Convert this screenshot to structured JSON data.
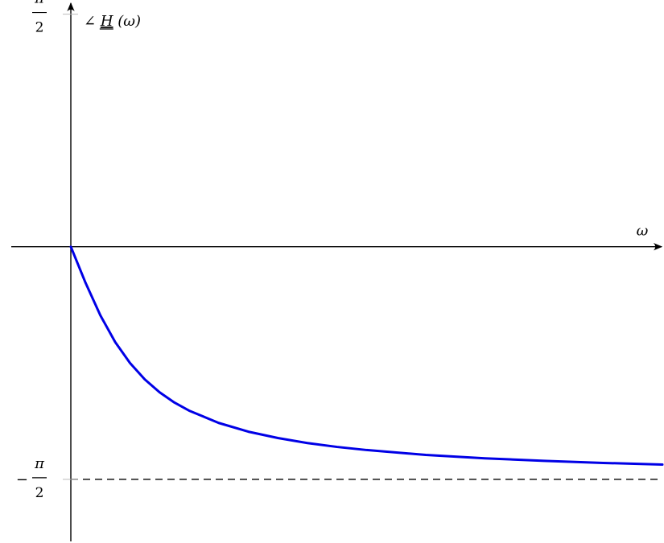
{
  "chart_data": {
    "type": "line",
    "title": "",
    "xlabel": "ω",
    "ylabel": "∠H(ω)",
    "ylabel_parts": {
      "angle": "∠",
      "var": "H",
      "arg": "(ω)"
    },
    "xlim": [
      0,
      10
    ],
    "ylim": [
      -1.99,
      1.65
    ],
    "y_ticks": [
      {
        "value": 1.5708,
        "sign": "",
        "numerator": "π",
        "denominator": "2"
      },
      {
        "value": -1.5708,
        "sign": "−",
        "numerator": "π",
        "denominator": "2"
      }
    ],
    "series": [
      {
        "color": "#0000e6",
        "style": "solid",
        "x": [
          0,
          0.25,
          0.5,
          0.75,
          1,
          1.25,
          1.5,
          1.75,
          2,
          2.5,
          3,
          3.5,
          4,
          4.5,
          5,
          6,
          7,
          8,
          9,
          10
        ],
        "y": [
          0,
          -0.245,
          -0.464,
          -0.644,
          -0.785,
          -0.896,
          -0.983,
          -1.052,
          -1.107,
          -1.19,
          -1.249,
          -1.292,
          -1.326,
          -1.352,
          -1.373,
          -1.406,
          -1.429,
          -1.446,
          -1.46,
          -1.471
        ]
      }
    ],
    "reference_lines": [
      {
        "y": -1.5708,
        "style": "dashed",
        "color": "#000000"
      }
    ],
    "grid": false,
    "legend": "none"
  }
}
